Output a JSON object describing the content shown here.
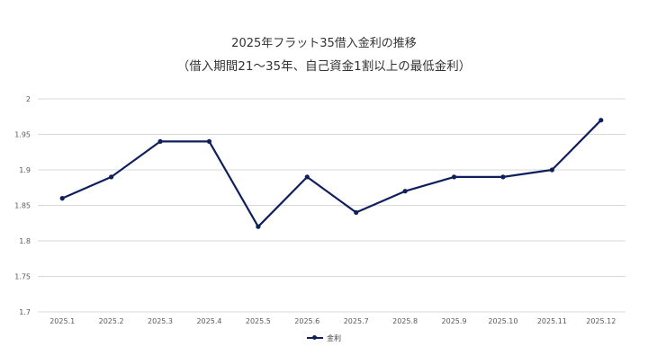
{
  "chart_data": {
    "type": "line",
    "title": "2025年フラット35借入金利の推移",
    "subtitle": "（借入期間21～35年、自己資金1割以上の最低金利）",
    "categories": [
      "2025.1",
      "2025.2",
      "2025.3",
      "2025.4",
      "2025.5",
      "2025.6",
      "2025.7",
      "2025.8",
      "2025.9",
      "2025.10",
      "2025.11",
      "2025.12"
    ],
    "series": [
      {
        "name": "金利",
        "values": [
          1.86,
          1.89,
          1.94,
          1.94,
          1.82,
          1.89,
          1.84,
          1.87,
          1.89,
          1.89,
          1.9,
          1.97
        ]
      }
    ],
    "ylim": [
      1.7,
      2.0
    ],
    "yticks": [
      "1.7",
      "1.75",
      "1.8",
      "1.85",
      "1.9",
      "1.95",
      "2"
    ],
    "grid": true,
    "legend": "bottom",
    "color": "#0f1f5c"
  }
}
